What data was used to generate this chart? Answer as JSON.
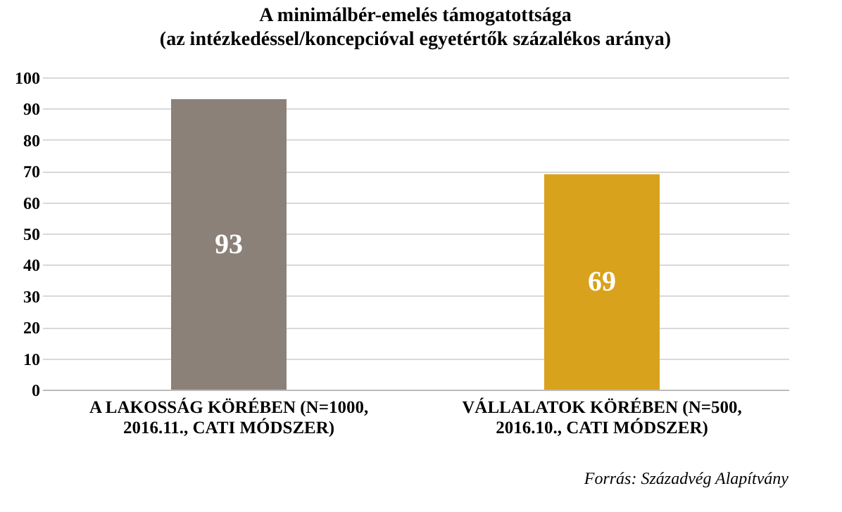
{
  "chart_data": {
    "type": "bar",
    "title": "A minimálbér-emelés támogatottsága",
    "subtitle": "(az intézkedéssel/koncepcióval egyetértők százalékos aránya)",
    "categories": [
      "A LAKOSSÁG KÖRÉBEN (N=1000, 2016.11., CATI MÓDSZER)",
      "VÁLLALATOK KÖRÉBEN (N=500, 2016.10., CATI MÓDSZER)"
    ],
    "values": [
      93,
      69
    ],
    "colors": [
      "#8b8178",
      "#d9a21c"
    ],
    "ylim": [
      0,
      100
    ],
    "yticks": [
      0,
      10,
      20,
      30,
      40,
      50,
      60,
      70,
      80,
      90,
      100
    ],
    "grid": "y",
    "data_labels": true,
    "annotations": [
      "Forrás: Századvég Alapítvány"
    ]
  }
}
